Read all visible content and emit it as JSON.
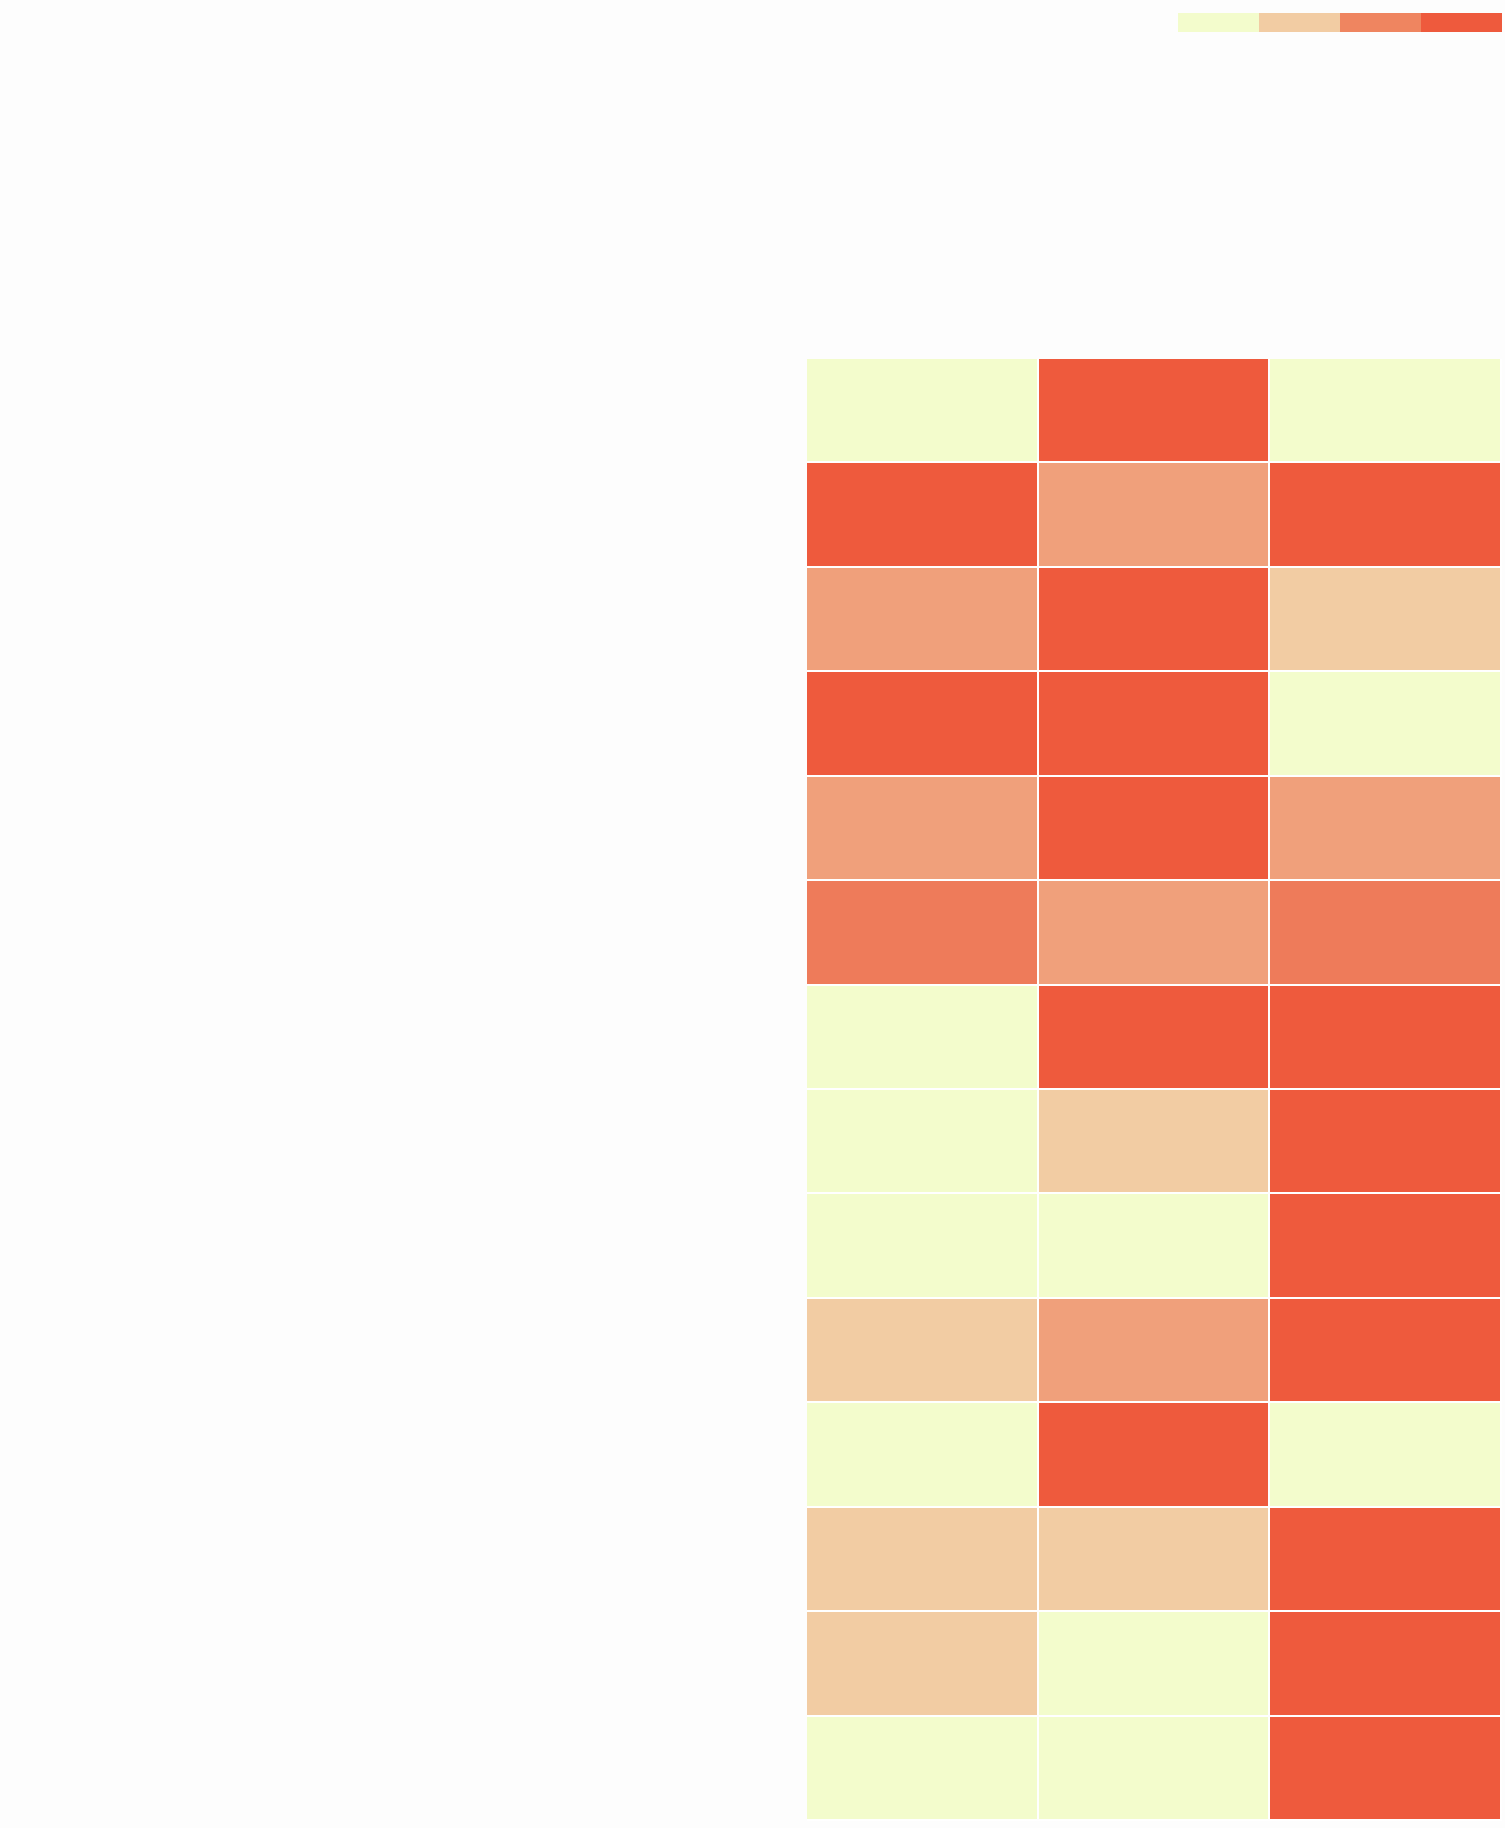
{
  "chart_data": {
    "type": "heatmap",
    "title": "",
    "xlabel": "",
    "ylabel": "",
    "x_categories": [],
    "y_categories": [],
    "levels": 4,
    "colorscale": [
      "#f3fccc",
      "#f2cca3",
      "#ef8560",
      "#ee5a3d"
    ],
    "cell_colors": {
      "level_1": "#f3fccc",
      "level_2": "#f2cca3",
      "level_3": "#f0a07b",
      "level_3b": "#ee7b5a",
      "level_4": "#ee5a3d"
    },
    "values": [
      [
        1,
        4,
        1
      ],
      [
        4,
        3,
        4
      ],
      [
        3,
        4,
        2
      ],
      [
        4,
        4,
        1
      ],
      [
        3,
        4,
        3
      ],
      [
        3.5,
        3,
        3.5
      ],
      [
        1,
        4,
        4
      ],
      [
        1,
        2,
        4
      ],
      [
        1,
        1,
        4
      ],
      [
        2,
        3,
        4
      ],
      [
        1,
        4,
        1
      ],
      [
        2,
        2,
        4
      ],
      [
        2,
        1,
        4
      ],
      [
        1,
        1,
        4
      ]
    ],
    "grid": false,
    "legend": {
      "type": "color-bar",
      "placement": "top-right",
      "labels": []
    }
  }
}
